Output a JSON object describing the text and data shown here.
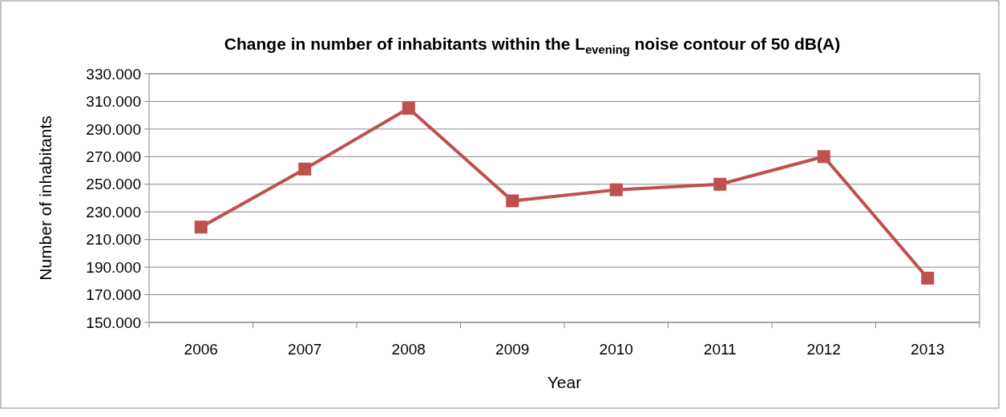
{
  "chart_data": {
    "type": "line",
    "title": "Change in number of inhabitants within the L$_{evening}$ noise contour of 50 dB(A)",
    "xlabel": "Year",
    "ylabel": "Number of inhabitants",
    "categories": [
      "2006",
      "2007",
      "2008",
      "2009",
      "2010",
      "2011",
      "2012",
      "2013"
    ],
    "series": [
      {
        "color": "#c0504d",
        "values": [
          219000,
          261000,
          305000,
          238000,
          246000,
          250000,
          270000,
          182000
        ]
      }
    ],
    "ylim": [
      150000,
      330000
    ],
    "yticks": [
      {
        "value": 150000,
        "label": "150.000"
      },
      {
        "value": 170000,
        "label": "170.000"
      },
      {
        "value": 190000,
        "label": "190.000"
      },
      {
        "value": 210000,
        "label": "210.000"
      },
      {
        "value": 230000,
        "label": "230.000"
      },
      {
        "value": 250000,
        "label": "250.000"
      },
      {
        "value": 270000,
        "label": "270.000"
      },
      {
        "value": 290000,
        "label": "290.000"
      },
      {
        "value": 310000,
        "label": "310.000"
      },
      {
        "value": 330000,
        "label": "330.000"
      }
    ],
    "grid": "y",
    "marker": "square",
    "line_style": "solid"
  }
}
